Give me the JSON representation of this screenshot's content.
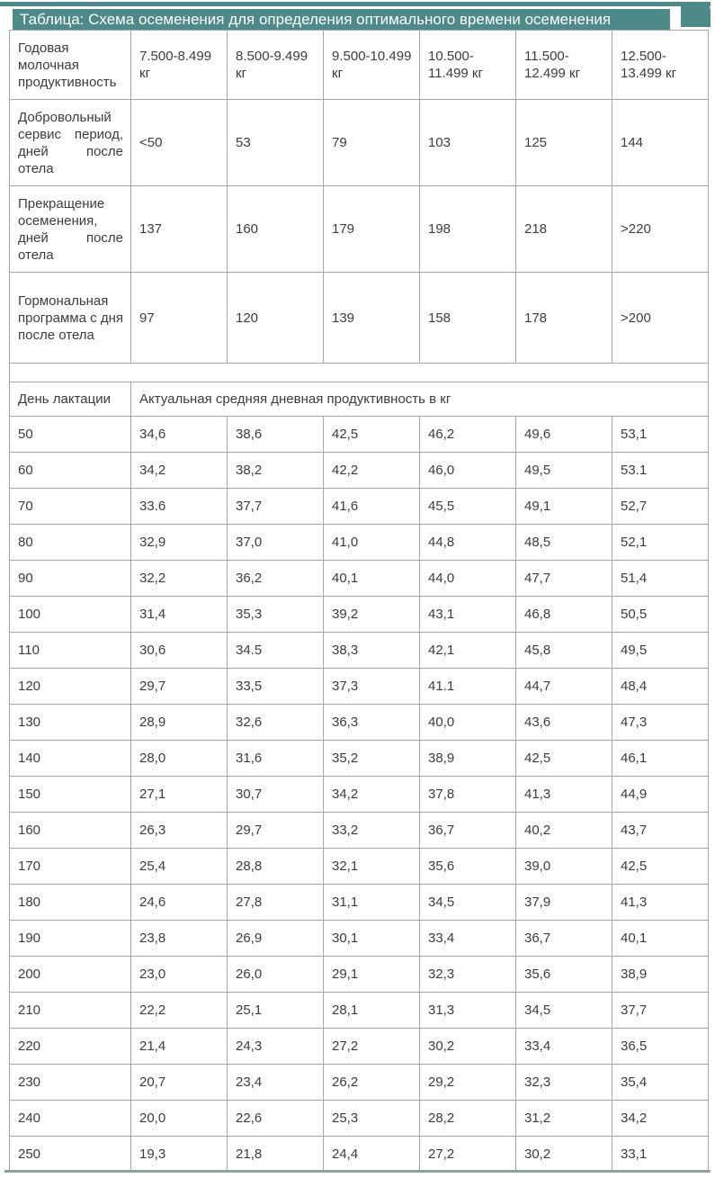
{
  "page": {
    "title": "Таблица: Схема осеменения для определения оптимального времени осеменения"
  },
  "colors": {
    "accent": "#4d8a89",
    "border": "#a8a8a8",
    "text": "#3d3d3d",
    "bottombar": "#8fa2a1"
  },
  "top_table": {
    "header": {
      "label": "Годовая молочная продуктивность",
      "columns": [
        "7.500-8.499 кг",
        "8.500-9.499 кг",
        "9.500-10.499 кг",
        "10.500-11.499 кг",
        "11.500-12.499 кг",
        "12.500-13.499 кг"
      ]
    },
    "rows": [
      {
        "label": "Добровольный сервис период, дней после отела",
        "values": [
          "<50",
          "53",
          "79",
          "103",
          "125",
          "144"
        ]
      },
      {
        "label": "Прекращение осеменения, дней после отела",
        "values": [
          "137",
          "160",
          "179",
          "198",
          "218",
          ">220"
        ]
      },
      {
        "label": "Гормональная программа с дня после отела",
        "values": [
          "97",
          "120",
          "139",
          "158",
          "178",
          ">200"
        ]
      }
    ]
  },
  "lactation_table": {
    "header": {
      "label": "День лактации",
      "span_label": "Актуальная средняя дневная продуктивность в кг"
    },
    "rows": [
      {
        "day": "50",
        "values": [
          "34,6",
          "38,6",
          "42,5",
          "46,2",
          "49,6",
          "53,1"
        ]
      },
      {
        "day": "60",
        "values": [
          "34,2",
          "38,2",
          "42,2",
          "46,0",
          "49,5",
          "53.1"
        ]
      },
      {
        "day": "70",
        "values": [
          "33.6",
          "37,7",
          "41,6",
          "45,5",
          "49,1",
          "52,7"
        ]
      },
      {
        "day": "80",
        "values": [
          "32,9",
          "37,0",
          "41,0",
          "44,8",
          "48,5",
          "52,1"
        ]
      },
      {
        "day": "90",
        "values": [
          "32,2",
          "36,2",
          "40,1",
          "44,0",
          "47,7",
          "51,4"
        ]
      },
      {
        "day": "100",
        "values": [
          "31,4",
          "35,3",
          "39,2",
          "43,1",
          "46,8",
          "50,5"
        ]
      },
      {
        "day": "110",
        "values": [
          "30,6",
          "34.5",
          "38,3",
          "42,1",
          "45,8",
          "49,5"
        ]
      },
      {
        "day": "120",
        "values": [
          "29,7",
          "33,5",
          "37,3",
          "41.1",
          "44,7",
          "48,4"
        ]
      },
      {
        "day": "130",
        "values": [
          "28,9",
          "32,6",
          "36,3",
          "40,0",
          "43,6",
          "47,3"
        ]
      },
      {
        "day": "140",
        "values": [
          "28,0",
          "31,6",
          "35,2",
          "38,9",
          "42,5",
          "46,1"
        ]
      },
      {
        "day": "150",
        "values": [
          "27,1",
          "30,7",
          "34,2",
          "37,8",
          "41,3",
          "44,9"
        ]
      },
      {
        "day": "160",
        "values": [
          "26,3",
          "29,7",
          "33,2",
          "36,7",
          "40,2",
          "43,7"
        ]
      },
      {
        "day": "170",
        "values": [
          "25,4",
          "28,8",
          "32,1",
          "35,6",
          "39,0",
          "42,5"
        ]
      },
      {
        "day": "180",
        "values": [
          "24,6",
          "27,8",
          "31,1",
          "34,5",
          "37,9",
          "41,3"
        ]
      },
      {
        "day": "190",
        "values": [
          "23,8",
          "26,9",
          "30,1",
          "33,4",
          "36,7",
          "40,1"
        ]
      },
      {
        "day": "200",
        "values": [
          "23,0",
          "26,0",
          "29,1",
          "32,3",
          "35,6",
          "38,9"
        ]
      },
      {
        "day": "210",
        "values": [
          "22,2",
          "25,1",
          "28,1",
          "31,3",
          "34,5",
          "37,7"
        ]
      },
      {
        "day": "220",
        "values": [
          "21,4",
          "24,3",
          "27,2",
          "30,2",
          "33,4",
          "36,5"
        ]
      },
      {
        "day": "230",
        "values": [
          "20,7",
          "23,4",
          "26,2",
          "29,2",
          "32,3",
          "35,4"
        ]
      },
      {
        "day": "240",
        "values": [
          "20,0",
          "22,6",
          "25,3",
          "28,2",
          "31,2",
          "34,2"
        ]
      },
      {
        "day": "250",
        "values": [
          "19,3",
          "21,8",
          "24,4",
          "27,2",
          "30,2",
          "33,1"
        ]
      }
    ]
  }
}
